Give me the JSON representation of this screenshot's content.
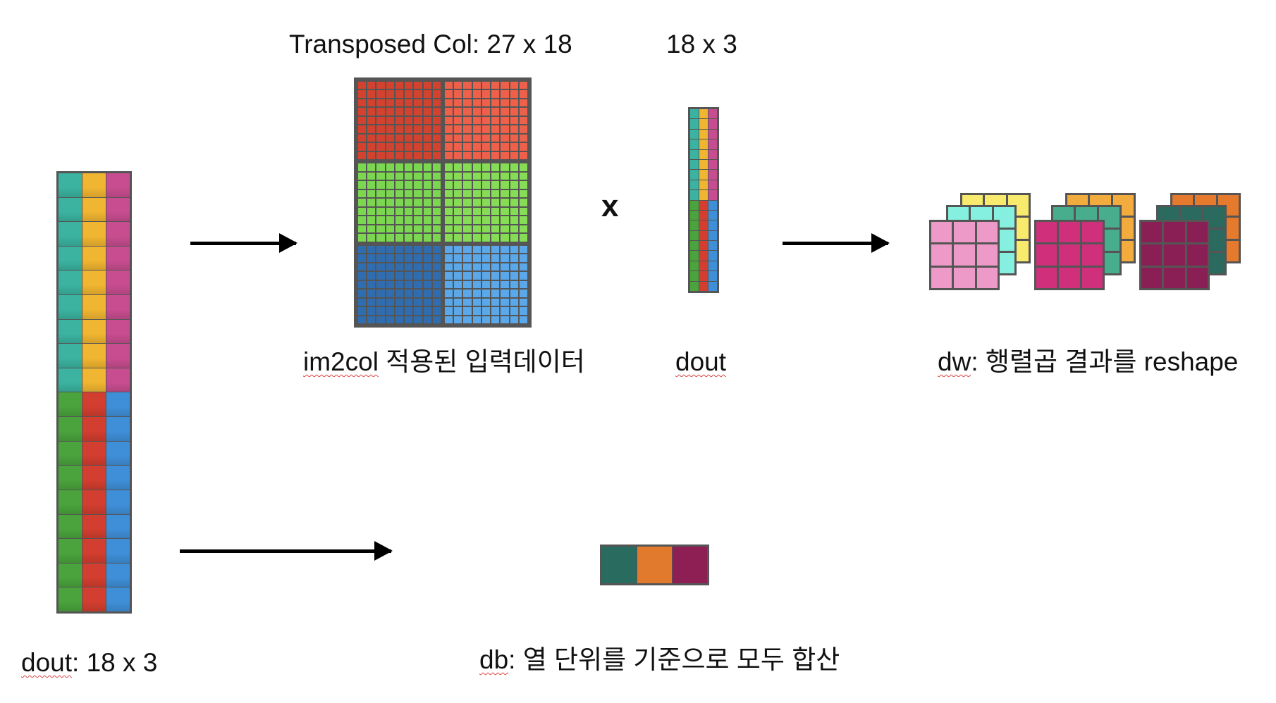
{
  "labels": {
    "transposed_col": "Transposed Col: 27 x 18",
    "dout_size_top": "18 x 3",
    "im2col_prefix": "im2col",
    "im2col_suffix": " 적용된 입력데이터",
    "dout_mid": "dout",
    "dw_prefix": "dw",
    "dw_suffix": ": 행렬곱 결과를 reshape",
    "dout_bottom_prefix": "dout",
    "dout_bottom_suffix": ": 18 x 3",
    "db_prefix": "db",
    "db_suffix": ": 열 단위를 기준으로 모두 합산",
    "times": "x"
  },
  "colors": {
    "teal": "#3bb3a0",
    "amber": "#f0b531",
    "pink_magenta": "#c84d90",
    "green": "#4aa33c",
    "red": "#d23e2f",
    "blue": "#3f8fd8",
    "col_red_dark": "#d2422f",
    "col_red_light": "#ef604a",
    "col_green": "#7bd74f",
    "col_green2": "#86dd55",
    "col_blue_dark": "#2f6db0",
    "col_blue_light": "#5aa8ea",
    "db_teal": "#2a6b60",
    "db_orange": "#e27a2e",
    "db_plum": "#8e1f55"
  },
  "dw_filters": [
    {
      "back": "#f8ea6c",
      "mid": "#86f0e0",
      "front": "#ee9ac8"
    },
    {
      "back": "#f2ac3e",
      "mid": "#48ad8c",
      "front": "#d02f7c"
    },
    {
      "back": "#e67a2c",
      "mid": "#2b6a5e",
      "front": "#8a1f55"
    }
  ]
}
